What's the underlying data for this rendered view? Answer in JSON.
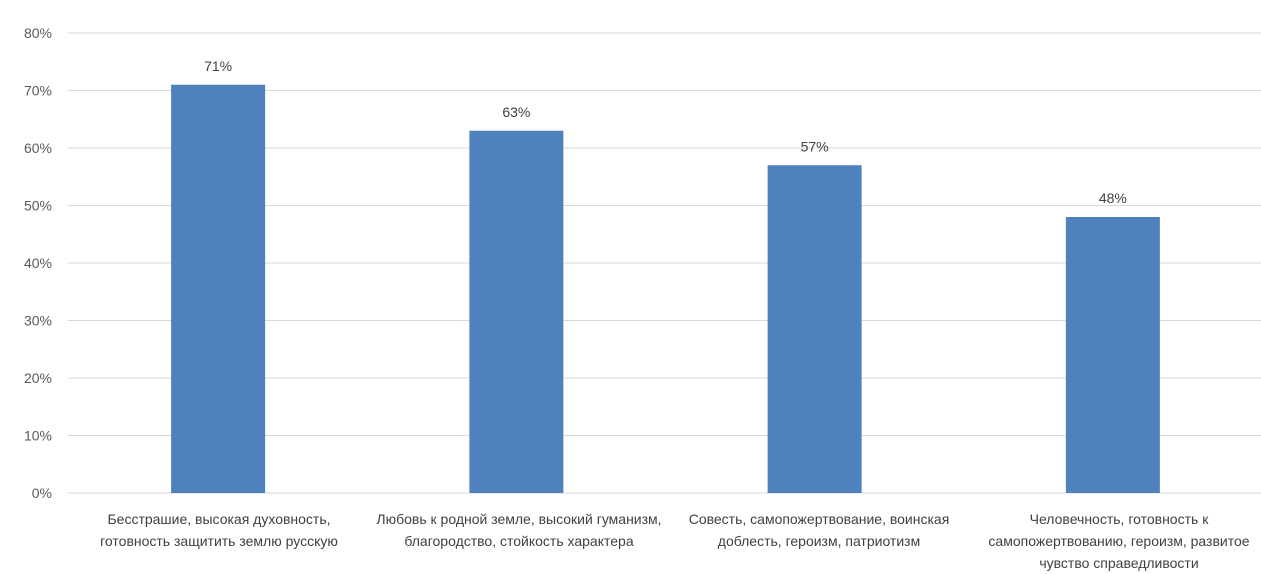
{
  "chart_data": {
    "type": "bar",
    "categories": [
      "Бесстрашие, высокая духовность, готовность защитить землю русскую",
      "Любовь к родной земле, высокий гуманизм, благородство, стойкость характера",
      "Совесть, самопожертвование, воинская доблесть, героизм, патриотизм",
      "Человечность, готовность к самопожертвованию, героизм, развитое чувство справедливости"
    ],
    "values": [
      71,
      63,
      57,
      48
    ],
    "data_labels": [
      "71%",
      "63%",
      "57%",
      "48%"
    ],
    "ylim": [
      0,
      80
    ],
    "yticks": [
      "0%",
      "10%",
      "20%",
      "30%",
      "40%",
      "50%",
      "60%",
      "70%",
      "80%"
    ],
    "grid": true,
    "bar_color": "#4F81BD",
    "grid_color": "#D9D9D9"
  }
}
